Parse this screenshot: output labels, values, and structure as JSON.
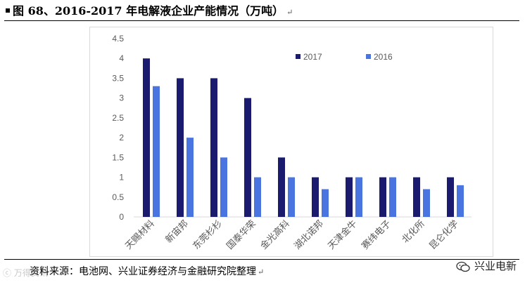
{
  "header": {
    "title": "图 68、2016-2017 年电解液企业产能情况（万吨）",
    "return_mark": "↵"
  },
  "footer": {
    "source": "资料来源：电池网、兴业证券经济与金融研究院整理",
    "return_mark": "↵"
  },
  "watermarks": {
    "left": "ⓒ 万得资讯",
    "right": "兴业电新"
  },
  "colors": {
    "series_2017": "#1a1a6e",
    "series_2016": "#4a74e0",
    "axis_text": "#595959",
    "grid": "#d9d9d9"
  },
  "chart_data": {
    "type": "bar",
    "title": "图 68、2016-2017 年电解液企业产能情况（万吨）",
    "xlabel": "",
    "ylabel": "",
    "ylim": [
      0,
      4.5
    ],
    "yticks": [
      "0",
      "0.5",
      "1",
      "1.5",
      "2",
      "2.5",
      "3",
      "3.5",
      "4",
      "4.5"
    ],
    "grid": false,
    "legend_position": "top-right",
    "categories": [
      "天赐材料",
      "新宙邦",
      "东莞杉杉",
      "国泰华荣",
      "金光高科",
      "湖北诺邦",
      "天津金牛",
      "赛纬电子",
      "北化所",
      "昆仑化学"
    ],
    "series": [
      {
        "name": "2017",
        "values": [
          4,
          3.5,
          3.5,
          3,
          1.5,
          1,
          1,
          1,
          1,
          1
        ]
      },
      {
        "name": "2016",
        "values": [
          3.3,
          2,
          1.5,
          1,
          1,
          0.7,
          1,
          1,
          0.7,
          0.8
        ]
      }
    ]
  }
}
